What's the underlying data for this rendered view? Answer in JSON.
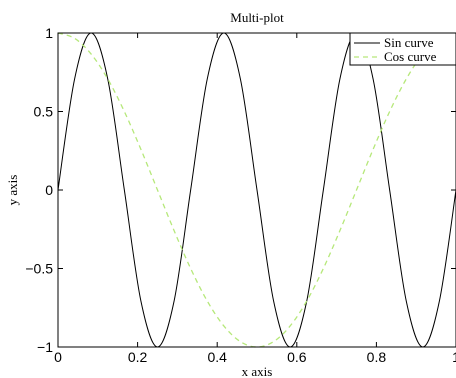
{
  "chart_data": {
    "type": "line",
    "title": "Multi-plot",
    "xlabel": "x axis",
    "ylabel": "y axis",
    "xlim": [
      0,
      1
    ],
    "ylim": [
      -1,
      1
    ],
    "xticks": [
      0,
      0.2,
      0.4,
      0.6,
      0.8,
      1
    ],
    "xtick_labels": [
      "0",
      "0.2",
      "0.4",
      "0.6",
      "0.8",
      "1"
    ],
    "yticks": [
      -1,
      -0.5,
      0,
      0.5,
      1
    ],
    "ytick_labels": [
      "−1",
      "−0.5",
      "0",
      "0.5",
      "1"
    ],
    "legend_position": "top-right",
    "grid": false,
    "series": [
      {
        "name": "Sin curve",
        "color": "#000000",
        "style": "solid",
        "x": [
          0,
          0.0417,
          0.0833,
          0.125,
          0.1667,
          0.2083,
          0.25,
          0.2917,
          0.3333,
          0.375,
          0.4167,
          0.4583,
          0.5,
          0.5417,
          0.5833,
          0.625,
          0.6667,
          0.7083,
          0.75,
          0.7917,
          0.8333,
          0.875,
          0.9167,
          0.9583,
          1
        ],
        "y": [
          0,
          0.7071,
          1,
          0.7071,
          0,
          -0.7071,
          -1,
          -0.7071,
          0,
          0.7071,
          1,
          0.7071,
          0,
          -0.7071,
          -1,
          -0.7071,
          0,
          0.7071,
          1,
          0.7071,
          0,
          -0.7071,
          -1,
          -0.7071,
          0
        ]
      },
      {
        "name": "Cos curve",
        "color": "#b6e87a",
        "style": "dashed",
        "x": [
          0,
          0.0417,
          0.0833,
          0.125,
          0.1667,
          0.2083,
          0.25,
          0.2917,
          0.3333,
          0.375,
          0.4167,
          0.4583,
          0.5,
          0.5417,
          0.5833,
          0.625,
          0.6667,
          0.7083,
          0.75,
          0.7917,
          0.8333,
          0.875,
          0.9167,
          0.9583,
          1
        ],
        "y": [
          1,
          0.9659,
          0.866,
          0.7071,
          0.5,
          0.2588,
          0,
          -0.2588,
          -0.5,
          -0.7071,
          -0.866,
          -0.9659,
          -1,
          -0.9659,
          -0.866,
          -0.7071,
          -0.5,
          -0.2588,
          0,
          0.2588,
          0.5,
          0.7071,
          0.866,
          0.9659,
          1
        ]
      }
    ]
  }
}
